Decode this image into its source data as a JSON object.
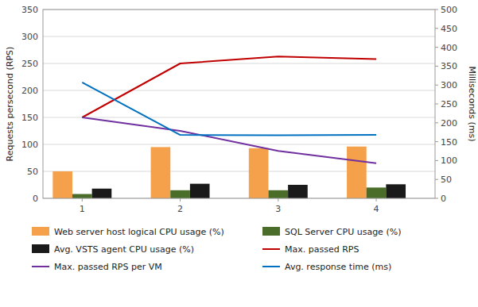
{
  "chart_data": {
    "type": "bar",
    "x": [
      1,
      2,
      3,
      4
    ],
    "xlim": [
      0.6,
      4.6
    ],
    "xticks": [
      1,
      2,
      3,
      4
    ],
    "ylabel": "Requests persecond (RPS)",
    "y2label": "Milliseconds  (ms)",
    "ylim": [
      0,
      350
    ],
    "yticks": [
      0,
      50,
      100,
      150,
      200,
      250,
      300,
      350
    ],
    "y2lim": [
      0,
      500
    ],
    "y2ticks": [
      0,
      50,
      100,
      150,
      200,
      250,
      300,
      350,
      400,
      450,
      500
    ],
    "grid": true,
    "legend": "bottom",
    "series": [
      {
        "name": "Web server host logical CPU usage (%)",
        "type": "bar",
        "color": "#F5A04A",
        "values": [
          50,
          95,
          93,
          96
        ]
      },
      {
        "name": "SQL Server CPU usage (%)",
        "type": "bar",
        "color": "#4A6E2A",
        "values": [
          8,
          15,
          15,
          20
        ]
      },
      {
        "name": "Avg. VSTS agent CPU usage (%)",
        "type": "bar",
        "color": "#1A1A1A",
        "values": [
          18,
          27,
          25,
          26
        ]
      },
      {
        "name": "Max. passed RPS",
        "type": "line",
        "color": "#C00000",
        "values": [
          150,
          250,
          263,
          258
        ]
      },
      {
        "name": "Max. passed RPS per VM",
        "type": "line",
        "color": "#7030A0",
        "values": [
          150,
          125,
          88,
          65
        ]
      },
      {
        "name": "Avg. response time (ms)",
        "type": "line",
        "axis": "y2",
        "color": "#0070C0",
        "values": [
          307,
          168,
          167,
          168
        ]
      }
    ]
  }
}
